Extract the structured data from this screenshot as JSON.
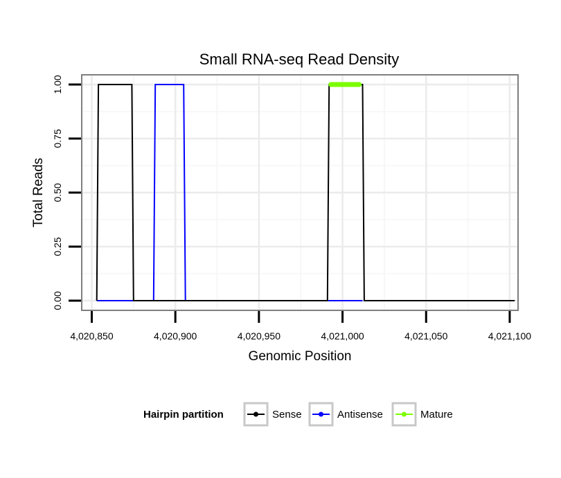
{
  "chart_data": {
    "type": "line",
    "title": "Small RNA-seq Read Density",
    "xlabel": "Genomic Position",
    "ylabel": "Total Reads",
    "xlim": [
      4020844,
      4021105
    ],
    "ylim": [
      -0.045,
      1.045
    ],
    "x_ticks": [
      4020850,
      4020900,
      4020950,
      4021000,
      4021050,
      4021100
    ],
    "x_tick_labels": [
      "4,020,850",
      "4,020,900",
      "4,020,950",
      "4,021,000",
      "4,021,050",
      "4,021,100"
    ],
    "y_ticks": [
      0,
      0.25,
      0.5,
      0.75,
      1.0
    ],
    "y_tick_labels": [
      "0.00",
      "0.25",
      "0.50",
      "0.75",
      "1.00"
    ],
    "grid": true,
    "legend": {
      "title": "Hairpin partition",
      "position": "bottom",
      "entries": [
        "Sense",
        "Antisense",
        "Mature"
      ]
    },
    "series": [
      {
        "name": "Sense",
        "color": "#000000",
        "x": [
          4020853,
          4020854,
          4020874,
          4020875,
          4020991,
          4020992,
          4021012,
          4021013,
          4021103
        ],
        "y": [
          0,
          1,
          1,
          0,
          0,
          1,
          1,
          0,
          0
        ]
      },
      {
        "name": "Antisense",
        "color": "#0000ff",
        "x": [
          4020853,
          4020887,
          4020888,
          4020905,
          4020906,
          4021012
        ],
        "y": [
          0,
          0,
          1,
          1,
          0,
          0
        ]
      },
      {
        "name": "Mature",
        "color": "#7cfc00",
        "x": [
          4020993,
          4021010
        ],
        "y": [
          1,
          1
        ]
      }
    ]
  }
}
